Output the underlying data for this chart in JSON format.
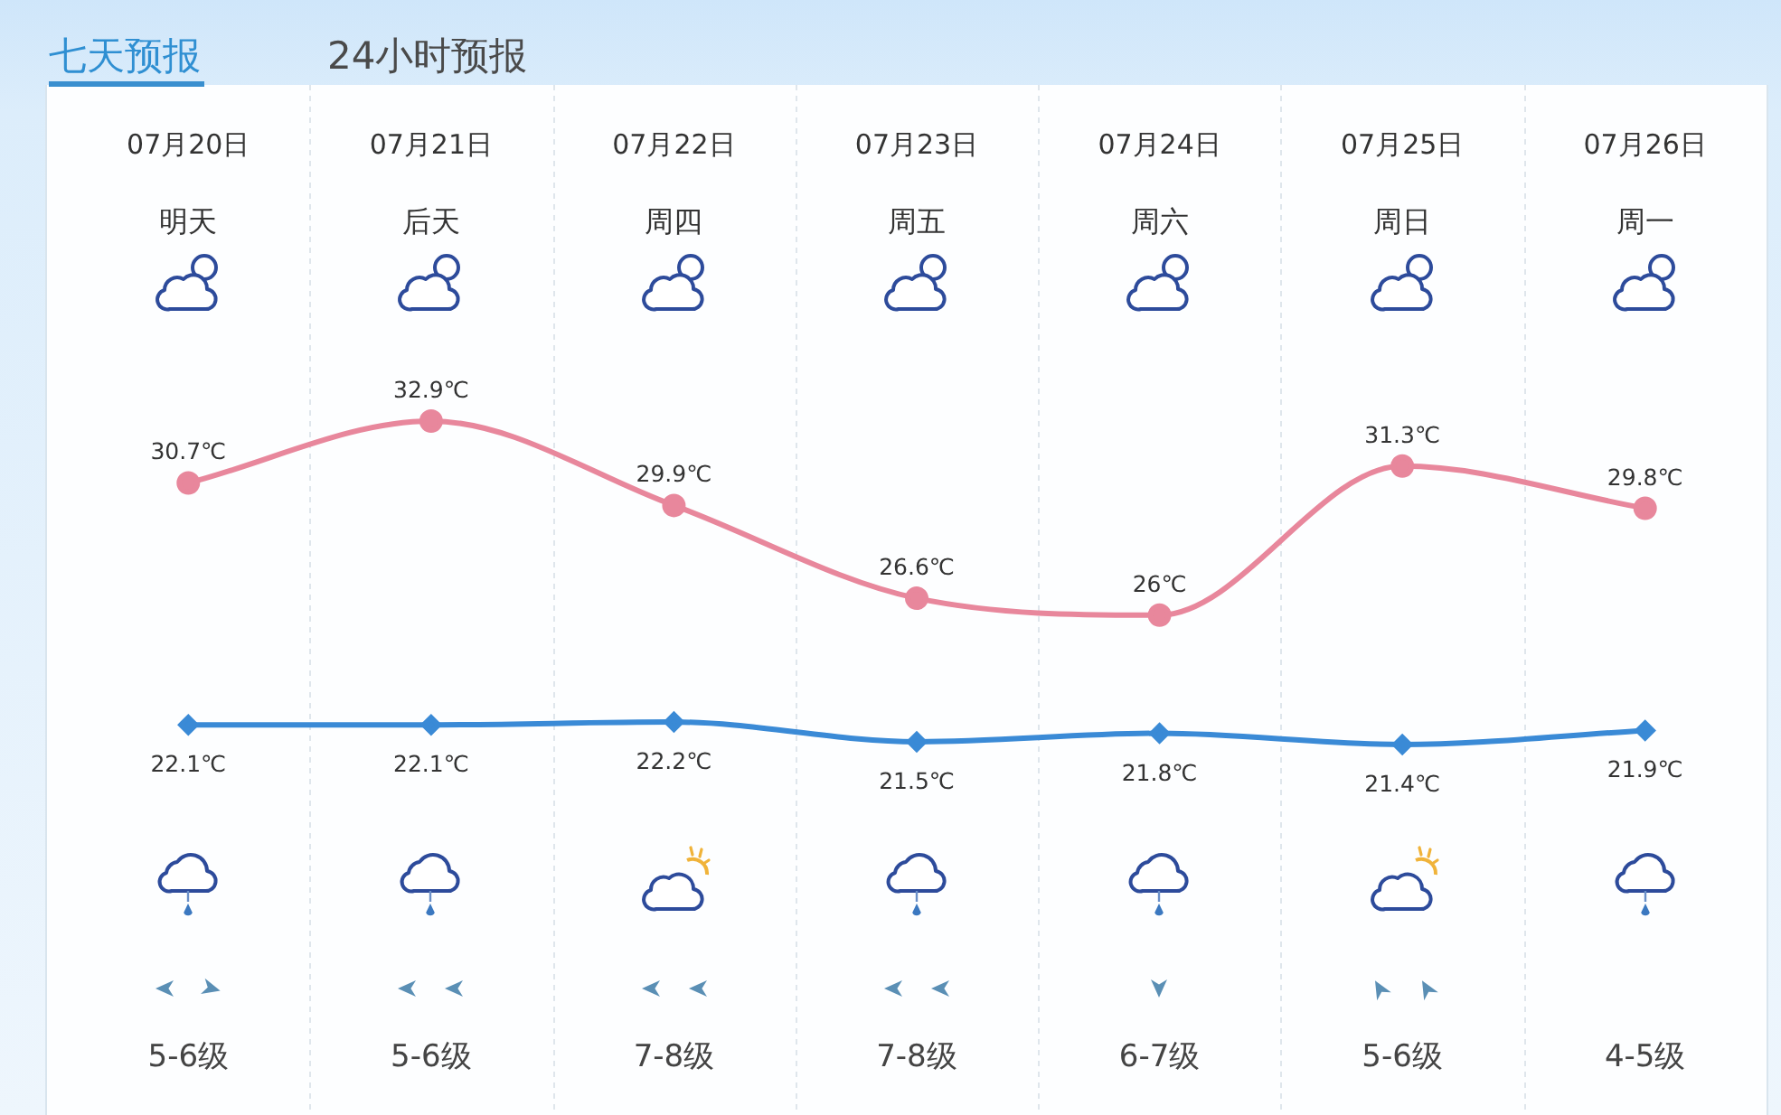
{
  "chart_data": {
    "type": "line",
    "categories": [
      "07月20日",
      "07月21日",
      "07月22日",
      "07月23日",
      "07月24日",
      "07月25日",
      "07月26日"
    ],
    "series": [
      {
        "color": "#e8879c",
        "marker": "circle",
        "values": [
          30.7,
          32.9,
          29.9,
          26.6,
          26,
          31.3,
          29.8
        ],
        "value_labels": [
          "30.7℃",
          "32.9℃",
          "29.9℃",
          "26.6℃",
          "26℃",
          "31.3℃",
          "29.8℃"
        ]
      },
      {
        "color": "#3a8ad6",
        "marker": "diamond",
        "values": [
          22.1,
          22.1,
          22.2,
          21.5,
          21.8,
          21.4,
          21.9
        ],
        "value_labels": [
          "22.1℃",
          "22.1℃",
          "22.2℃",
          "21.5℃",
          "21.8℃",
          "21.4℃",
          "21.9℃"
        ]
      }
    ],
    "annotations": [
      "七天预报",
      "24小时预报",
      "明天",
      "后天",
      "周四",
      "周五",
      "周六",
      "周日",
      "周一",
      "5-6级",
      "5-6级",
      "7-8级",
      "7-8级",
      "6-7级",
      "5-6级",
      "4-5级"
    ],
    "grid": "x",
    "line_style": "solid",
    "tick_labels": "x"
  }
}
